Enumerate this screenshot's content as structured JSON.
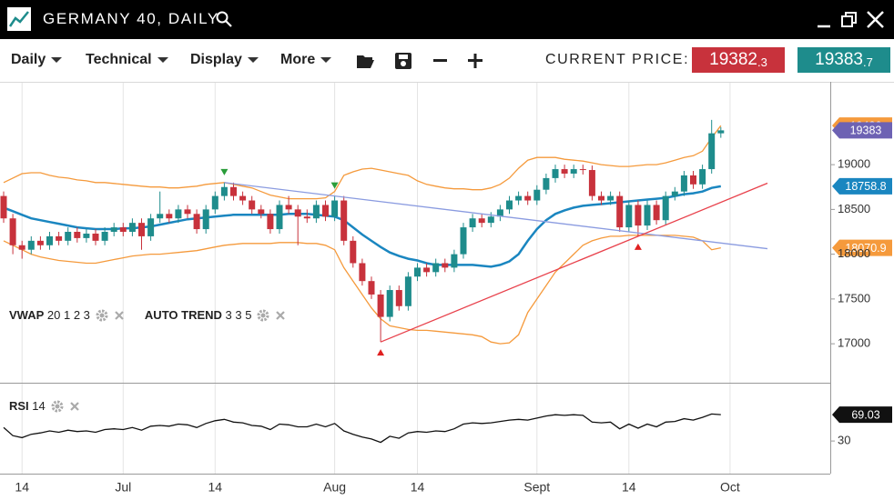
{
  "header": {
    "title": "GERMANY 40, DAILY"
  },
  "toolbar": {
    "menus": [
      "Daily",
      "Technical",
      "Display",
      "More"
    ],
    "current_price_label": "CURRENT PRICE:",
    "bid": {
      "integer": "19382",
      "fraction": ".3"
    },
    "ask": {
      "integer": "19383",
      "fraction": ".7"
    }
  },
  "indicators": [
    {
      "name": "VWAP",
      "params": "20 1 2 3"
    },
    {
      "name": "AUTO TREND",
      "params": "3 3 5"
    }
  ],
  "rsi_indicator": {
    "name": "RSI",
    "params": "14"
  },
  "chart_data": [
    {
      "type": "candlestick",
      "categories": [
        null,
        null,
        "14",
        null,
        null,
        null,
        null,
        null,
        null,
        null,
        null,
        null,
        null,
        "Jul",
        null,
        null,
        null,
        null,
        null,
        null,
        null,
        null,
        null,
        "14",
        null,
        null,
        null,
        null,
        null,
        null,
        null,
        null,
        null,
        null,
        null,
        null,
        "Aug",
        null,
        null,
        null,
        null,
        null,
        null,
        null,
        null,
        "14",
        null,
        null,
        null,
        null,
        null,
        null,
        null,
        null,
        null,
        null,
        null,
        null,
        "Sept",
        null,
        null,
        null,
        null,
        null,
        null,
        null,
        null,
        null,
        "14",
        null,
        null,
        null,
        null,
        null,
        null,
        null,
        null,
        null,
        null,
        "Oct"
      ],
      "open": [
        18650,
        18400,
        18100,
        18050,
        18150,
        18100,
        18200,
        18150,
        18250,
        18180,
        18230,
        18150,
        18250,
        18300,
        18250,
        18350,
        18200,
        18400,
        18450,
        18400,
        18500,
        18450,
        18280,
        18500,
        18650,
        18750,
        18650,
        18600,
        18500,
        18450,
        18280,
        18550,
        18500,
        18420,
        18400,
        18550,
        18420,
        18600,
        18150,
        17900,
        17700,
        17550,
        17300,
        17600,
        17420,
        17750,
        17850,
        17800,
        17900,
        17850,
        18000,
        18300,
        18400,
        18350,
        18420,
        18500,
        18600,
        18650,
        18600,
        18720,
        18850,
        18950,
        18900,
        18950,
        18940,
        18650,
        18600,
        18650,
        18300,
        18550,
        18320,
        18550,
        18380,
        18650,
        18700,
        18880,
        18780,
        18950,
        19350,
        null
      ],
      "high": [
        18700,
        18450,
        18150,
        18200,
        18200,
        18250,
        18250,
        18300,
        18300,
        18280,
        18280,
        18300,
        18350,
        18350,
        18400,
        18400,
        18450,
        18700,
        18500,
        18550,
        18550,
        18500,
        18550,
        18700,
        18800,
        18800,
        18700,
        18650,
        18550,
        18500,
        18600,
        18650,
        18550,
        18500,
        18600,
        18600,
        18650,
        18650,
        18200,
        17950,
        17750,
        17600,
        17650,
        17650,
        17800,
        17900,
        17900,
        17950,
        17950,
        18050,
        18350,
        18450,
        18450,
        18470,
        18550,
        18650,
        18700,
        18700,
        18770,
        18900,
        19000,
        19000,
        19000,
        19000,
        18990,
        18700,
        18700,
        18700,
        18600,
        18600,
        18600,
        18600,
        18700,
        18750,
        18930,
        18930,
        19000,
        19500,
        19420,
        null
      ],
      "low": [
        18350,
        18000,
        17950,
        18000,
        18050,
        18050,
        18100,
        18100,
        18130,
        18130,
        18100,
        18100,
        18200,
        18200,
        18200,
        18050,
        18150,
        18350,
        18350,
        18350,
        18400,
        18230,
        18230,
        18450,
        18600,
        18600,
        18550,
        18450,
        18400,
        18230,
        18230,
        18450,
        18100,
        18350,
        18350,
        18370,
        18370,
        18100,
        17850,
        17650,
        17500,
        17020,
        17250,
        17370,
        17370,
        17700,
        17750,
        17750,
        17800,
        17800,
        17950,
        18250,
        18300,
        18300,
        18370,
        18450,
        18550,
        18550,
        18550,
        18670,
        18800,
        18850,
        18850,
        18890,
        18600,
        18550,
        18550,
        18250,
        18250,
        18200,
        18270,
        18330,
        18330,
        18600,
        18650,
        18730,
        18730,
        18900,
        19300,
        null
      ],
      "close": [
        18400,
        18100,
        18050,
        18150,
        18100,
        18200,
        18150,
        18250,
        18180,
        18230,
        18150,
        18250,
        18300,
        18250,
        18350,
        18200,
        18400,
        18450,
        18400,
        18500,
        18450,
        18280,
        18500,
        18650,
        18750,
        18650,
        18600,
        18500,
        18450,
        18280,
        18550,
        18500,
        18420,
        18400,
        18550,
        18420,
        18600,
        18150,
        17900,
        17700,
        17550,
        17300,
        17600,
        17420,
        17750,
        17850,
        17800,
        17900,
        17850,
        18000,
        18300,
        18400,
        18350,
        18420,
        18500,
        18600,
        18650,
        18600,
        18720,
        18850,
        18950,
        18900,
        18950,
        18940,
        18650,
        18600,
        18650,
        18300,
        18550,
        18320,
        18550,
        18380,
        18650,
        18700,
        18880,
        18780,
        18950,
        19350,
        19383,
        null
      ],
      "up_color": "#1e8c8c",
      "down_color": "#c8323c",
      "close_tag_color": "#6d62b3",
      "series": [
        {
          "color": "#f59a3c",
          "values": [
            18800,
            18850,
            18900,
            18910,
            18910,
            18880,
            18860,
            18850,
            18830,
            18820,
            18800,
            18800,
            18790,
            18780,
            18770,
            18760,
            18750,
            18750,
            18740,
            18740,
            18750,
            18760,
            18780,
            18790,
            18800,
            18780,
            18760,
            18740,
            18700,
            18660,
            18640,
            18620,
            18620,
            18620,
            18620,
            18630,
            18700,
            18880,
            18920,
            18950,
            18960,
            18940,
            18920,
            18900,
            18880,
            18820,
            18780,
            18760,
            18740,
            18730,
            18730,
            18720,
            18720,
            18740,
            18780,
            18850,
            18960,
            19050,
            19080,
            19080,
            19080,
            19060,
            19050,
            19040,
            19020,
            19000,
            18990,
            18980,
            18980,
            18990,
            19000,
            19000,
            19020,
            19050,
            19080,
            19100,
            19150,
            19300,
            19436,
            null
          ]
        },
        {
          "color": "#1a86c0",
          "values": [
            18520,
            18480,
            18440,
            18400,
            18380,
            18360,
            18340,
            18320,
            18300,
            18290,
            18280,
            18280,
            18280,
            18290,
            18290,
            18300,
            18310,
            18330,
            18350,
            18370,
            18390,
            18400,
            18410,
            18420,
            18430,
            18440,
            18440,
            18440,
            18440,
            18440,
            18440,
            18450,
            18450,
            18450,
            18440,
            18430,
            18420,
            18380,
            18300,
            18220,
            18150,
            18080,
            18020,
            17980,
            17950,
            17930,
            17900,
            17880,
            17880,
            17880,
            17880,
            17880,
            17870,
            17860,
            17880,
            17920,
            18000,
            18150,
            18280,
            18380,
            18450,
            18490,
            18520,
            18540,
            18550,
            18560,
            18570,
            18580,
            18590,
            18600,
            18610,
            18620,
            18630,
            18650,
            18670,
            18680,
            18700,
            18740,
            18758.8,
            null
          ]
        },
        {
          "color": "#f59a3c",
          "values": [
            18150,
            18100,
            18050,
            18000,
            17970,
            17950,
            17930,
            17920,
            17910,
            17900,
            17900,
            17920,
            17940,
            17960,
            17980,
            17990,
            18000,
            18000,
            18010,
            18020,
            18030,
            18040,
            18060,
            18080,
            18100,
            18110,
            18120,
            18120,
            18120,
            18120,
            18130,
            18130,
            18130,
            18120,
            18120,
            18100,
            18050,
            17850,
            17700,
            17550,
            17400,
            17280,
            17200,
            17180,
            17160,
            17150,
            17150,
            17140,
            17130,
            17120,
            17110,
            17100,
            17080,
            17020,
            17000,
            17010,
            17100,
            17350,
            17500,
            17650,
            17800,
            17900,
            18000,
            18100,
            18150,
            18180,
            18200,
            18200,
            18210,
            18210,
            18210,
            18210,
            18210,
            18210,
            18200,
            18190,
            18150,
            18050,
            18070.9,
            null
          ]
        }
      ],
      "pivot_highs": [
        24,
        36
      ],
      "pivot_lows": [
        41,
        69
      ],
      "pivot_high_color": "#2a9d3a",
      "pivot_low_color": "#e02020",
      "trend_high_color": "#8a9be0",
      "trend_low_color": "#e8414b",
      "ylim": [
        16575,
        19925
      ],
      "yticks": [
        17000,
        17500,
        18000,
        18500,
        19000
      ],
      "grid": "x"
    },
    {
      "type": "line",
      "values": [
        50,
        38,
        35,
        40,
        42,
        45,
        43,
        46,
        44,
        45,
        43,
        47,
        48,
        47,
        50,
        46,
        52,
        53,
        52,
        55,
        54,
        50,
        56,
        60,
        62,
        58,
        57,
        53,
        52,
        47,
        55,
        54,
        51,
        51,
        55,
        51,
        56,
        45,
        40,
        36,
        33,
        28,
        37,
        34,
        42,
        44,
        43,
        45,
        44,
        48,
        55,
        57,
        56,
        57,
        59,
        61,
        62,
        61,
        64,
        67,
        69,
        68,
        69,
        68,
        58,
        57,
        58,
        48,
        55,
        49,
        55,
        51,
        58,
        59,
        63,
        61,
        65,
        70,
        69.03,
        null
      ],
      "color": "#111111",
      "tag_color": "#111111",
      "ylim": [
        -17,
        115
      ],
      "yticks": [
        30
      ]
    }
  ]
}
